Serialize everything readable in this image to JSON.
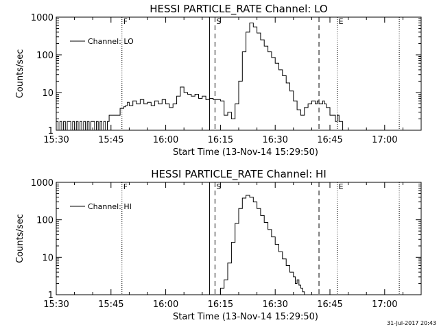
{
  "footer_date": "31-Jul-2017 20:43",
  "chart_data": [
    {
      "type": "line",
      "title": "HESSI PARTICLE_RATE Channel: LO",
      "xlabel": "Start Time (13-Nov-14 15:29:50)",
      "ylabel": "Counts/sec",
      "xlim": [
        "15:30",
        "17:10"
      ],
      "ylim": [
        1,
        1000
      ],
      "y_scale": "log",
      "legend": {
        "placement": "top-left",
        "label": "Channel: LO"
      },
      "x_ticks": [
        "15:30",
        "15:45",
        "16:00",
        "16:15",
        "16:30",
        "16:45",
        "17:00"
      ],
      "y_ticks": [
        "1",
        "10",
        "100",
        "1000"
      ],
      "markers": [
        {
          "label": "F",
          "x": "15:48",
          "style": "dotted"
        },
        {
          "label": "",
          "x": "16:12",
          "style": "solid"
        },
        {
          "label": "S",
          "x": "16:13.5",
          "style": "dashed"
        },
        {
          "label": "",
          "x": "16:42",
          "style": "dashed"
        },
        {
          "label": "E",
          "x": "16:47",
          "style": "dotted"
        },
        {
          "label": "",
          "x": "17:04",
          "style": "dotted"
        }
      ],
      "series": [
        {
          "values_x_min": [
            0,
            0.5,
            1,
            1.5,
            2,
            2.5,
            3,
            3.5,
            4,
            4.5,
            5,
            5.5,
            6,
            6.5,
            7,
            7.5,
            8,
            8.5,
            9,
            9.5,
            10,
            10.5,
            11,
            11.5,
            12,
            12.5,
            13,
            13.5,
            14,
            14.5,
            15,
            15.5,
            16,
            16.5,
            17,
            17.5,
            18,
            18.5,
            19,
            19.5,
            20,
            21,
            22,
            23,
            24,
            25,
            26,
            27,
            28,
            29,
            30,
            31,
            32,
            33,
            34,
            35,
            36,
            37,
            38,
            39,
            40,
            41,
            42,
            42.5,
            43,
            43.5,
            44,
            44.5,
            45,
            46,
            47,
            48,
            49,
            50,
            51,
            52,
            53,
            54,
            55,
            56,
            57,
            58,
            59,
            60,
            61,
            62,
            63,
            64,
            65,
            66,
            67,
            68,
            69,
            70,
            71,
            71.5,
            72,
            72.5,
            73,
            73.5,
            74,
            74.5,
            75,
            75.5,
            76,
            76.5,
            77,
            77.5,
            78,
            78.5,
            79,
            79.5,
            80,
            80.5,
            81,
            82,
            83,
            84,
            85,
            86,
            87,
            88,
            89,
            90,
            91,
            92,
            93,
            94,
            95
          ],
          "values": [
            1.7,
            1,
            1.7,
            1,
            1.7,
            1,
            1.7,
            1.7,
            1,
            1.7,
            1,
            1.7,
            1,
            1.7,
            1,
            1.7,
            1,
            1.7,
            1,
            1.7,
            1.7,
            1,
            1.7,
            1,
            1.7,
            1,
            1.7,
            1,
            1.7,
            2.5,
            2.5,
            2.5,
            2.5,
            2.5,
            2.5,
            3.8,
            3.8,
            4.2,
            4.5,
            5.5,
            4.5,
            6,
            5,
            6.5,
            5,
            5.5,
            4.5,
            6,
            5,
            6.5,
            5,
            4,
            5,
            8,
            14,
            10,
            9,
            8,
            9,
            7,
            8,
            6.5,
            7,
            7,
            6.5,
            6.5,
            6.5,
            6.5,
            6,
            2.5,
            3,
            2,
            5,
            20,
            120,
            400,
            700,
            550,
            380,
            250,
            170,
            120,
            85,
            60,
            40,
            28,
            18,
            11,
            6,
            3.5,
            2.5,
            4,
            5,
            6,
            5,
            6,
            5,
            5,
            6,
            5,
            4,
            4,
            2.5,
            2.5,
            2.5,
            1.7,
            2.5,
            1.7,
            1.7,
            1,
            1,
            1,
            1,
            1,
            1,
            1,
            1,
            1,
            1,
            1,
            1,
            1,
            1,
            1,
            1,
            1,
            1,
            1,
            1,
            1,
            1,
            1,
            1,
            1,
            1,
            1
          ]
        }
      ]
    },
    {
      "type": "line",
      "title": "HESSI PARTICLE_RATE Channel: HI",
      "xlabel": "Start Time (13-Nov-14 15:29:50)",
      "ylabel": "Counts/sec",
      "xlim": [
        "15:30",
        "17:10"
      ],
      "ylim": [
        1,
        1000
      ],
      "y_scale": "log",
      "legend": {
        "placement": "top-left",
        "label": "Channel: HI"
      },
      "x_ticks": [
        "15:30",
        "15:45",
        "16:00",
        "16:15",
        "16:30",
        "16:45",
        "17:00"
      ],
      "y_ticks": [
        "1",
        "10",
        "100",
        "1000"
      ],
      "markers": [
        {
          "label": "F",
          "x": "15:48",
          "style": "dotted"
        },
        {
          "label": "",
          "x": "16:12",
          "style": "solid"
        },
        {
          "label": "S",
          "x": "16:13.5",
          "style": "dashed"
        },
        {
          "label": "",
          "x": "16:42",
          "style": "dashed"
        },
        {
          "label": "E",
          "x": "16:47",
          "style": "dotted"
        },
        {
          "label": "",
          "x": "17:04",
          "style": "dotted"
        }
      ],
      "series": [
        {
          "values_x_min": [
            44,
            44.5,
            45,
            46,
            47,
            48,
            49,
            50,
            51,
            52,
            53,
            54,
            55,
            56,
            57,
            58,
            59,
            60,
            61,
            62,
            63,
            64,
            65,
            65.5,
            66,
            66.5,
            67,
            67.5,
            68
          ],
          "values": [
            1,
            1,
            1.5,
            2.5,
            7,
            25,
            80,
            200,
            380,
            450,
            400,
            300,
            200,
            130,
            85,
            55,
            35,
            22,
            14,
            9,
            6,
            4,
            3,
            2,
            2.5,
            1.8,
            1.5,
            1.2,
            1
          ]
        }
      ]
    }
  ]
}
